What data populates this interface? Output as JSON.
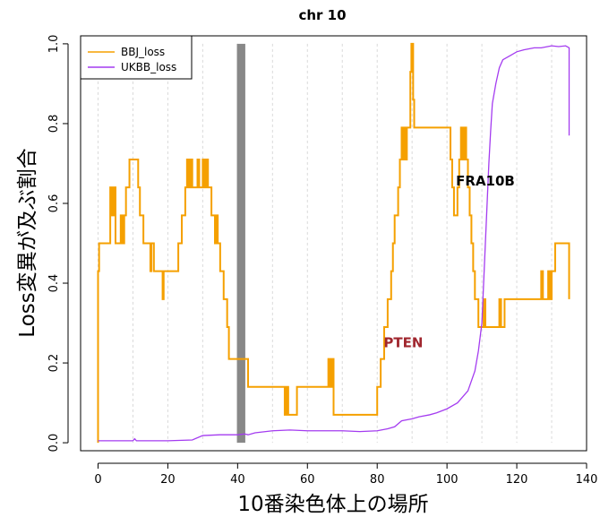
{
  "chart_data": {
    "type": "line",
    "title": "chr 10",
    "xlabel": "10番染色体上の場所",
    "ylabel": "Loss変異が及ぶ割合",
    "xlim": [
      -5,
      140
    ],
    "ylim": [
      -0.02,
      1.02
    ],
    "x_ticks": [
      0,
      20,
      40,
      60,
      80,
      100,
      120,
      140
    ],
    "y_ticks": [
      0.0,
      0.2,
      0.4,
      0.6,
      0.8,
      1.0
    ],
    "x_tick_labels": [
      "0",
      "20",
      "40",
      "60",
      "80",
      "100",
      "120",
      "140"
    ],
    "y_tick_labels": [
      "0.0",
      "0.2",
      "0.4",
      "0.6",
      "0.8",
      "1.0"
    ],
    "grid": "vertical dashed",
    "grid_x": [
      0,
      10,
      20,
      30,
      40,
      50,
      60,
      70,
      80,
      90,
      100,
      110,
      120,
      130
    ],
    "legend_position": "top-left",
    "centromere": {
      "x_start": 39.8,
      "x_end": 42.2,
      "y_start": 0.0,
      "y_end": 1.0,
      "color": "#888888"
    },
    "annotations": [
      {
        "text": "PTEN",
        "x": 87.5,
        "y": 0.24,
        "color": "#a0262e"
      },
      {
        "text": "FRA10B",
        "x": 111,
        "y": 0.645,
        "color": "#000000"
      }
    ],
    "series": [
      {
        "name": "BBJ_loss",
        "color": "#f5a000",
        "points": [
          [
            0,
            0.0
          ],
          [
            0,
            0.43
          ],
          [
            0.3,
            0.43
          ],
          [
            0.3,
            0.5
          ],
          [
            3.5,
            0.5
          ],
          [
            3.5,
            0.64
          ],
          [
            4,
            0.64
          ],
          [
            4,
            0.57
          ],
          [
            4.5,
            0.57
          ],
          [
            4.5,
            0.64
          ],
          [
            5,
            0.64
          ],
          [
            5,
            0.5
          ],
          [
            6.5,
            0.5
          ],
          [
            6.5,
            0.57
          ],
          [
            7,
            0.57
          ],
          [
            7,
            0.5
          ],
          [
            7.5,
            0.5
          ],
          [
            7.5,
            0.57
          ],
          [
            8,
            0.57
          ],
          [
            8,
            0.64
          ],
          [
            9,
            0.64
          ],
          [
            9,
            0.71
          ],
          [
            11.5,
            0.71
          ],
          [
            11.5,
            0.64
          ],
          [
            12,
            0.64
          ],
          [
            12,
            0.57
          ],
          [
            13,
            0.57
          ],
          [
            13,
            0.5
          ],
          [
            15,
            0.5
          ],
          [
            15,
            0.43
          ],
          [
            15.3,
            0.43
          ],
          [
            15.3,
            0.5
          ],
          [
            16,
            0.5
          ],
          [
            16,
            0.43
          ],
          [
            18.5,
            0.43
          ],
          [
            18.5,
            0.36
          ],
          [
            18.8,
            0.36
          ],
          [
            18.8,
            0.43
          ],
          [
            23,
            0.43
          ],
          [
            23,
            0.5
          ],
          [
            24,
            0.5
          ],
          [
            24,
            0.57
          ],
          [
            25,
            0.57
          ],
          [
            25,
            0.64
          ],
          [
            25.5,
            0.64
          ],
          [
            25.5,
            0.71
          ],
          [
            26,
            0.71
          ],
          [
            26,
            0.64
          ],
          [
            26.5,
            0.64
          ],
          [
            26.5,
            0.71
          ],
          [
            27,
            0.71
          ],
          [
            27,
            0.64
          ],
          [
            28.5,
            0.64
          ],
          [
            28.5,
            0.71
          ],
          [
            29,
            0.71
          ],
          [
            29,
            0.64
          ],
          [
            30,
            0.64
          ],
          [
            30,
            0.71
          ],
          [
            30.5,
            0.71
          ],
          [
            30.5,
            0.64
          ],
          [
            31,
            0.64
          ],
          [
            31,
            0.71
          ],
          [
            31.5,
            0.71
          ],
          [
            31.5,
            0.64
          ],
          [
            32.5,
            0.64
          ],
          [
            32.5,
            0.57
          ],
          [
            33.5,
            0.57
          ],
          [
            33.5,
            0.5
          ],
          [
            34,
            0.5
          ],
          [
            34,
            0.57
          ],
          [
            34.3,
            0.57
          ],
          [
            34.3,
            0.5
          ],
          [
            35,
            0.5
          ],
          [
            35,
            0.43
          ],
          [
            36,
            0.43
          ],
          [
            36,
            0.36
          ],
          [
            37,
            0.36
          ],
          [
            37,
            0.29
          ],
          [
            37.5,
            0.29
          ],
          [
            37.5,
            0.21
          ],
          [
            43,
            0.21
          ],
          [
            43,
            0.14
          ],
          [
            53.5,
            0.14
          ],
          [
            53.5,
            0.07
          ],
          [
            54,
            0.07
          ],
          [
            54,
            0.14
          ],
          [
            54.5,
            0.14
          ],
          [
            54.5,
            0.07
          ],
          [
            57,
            0.07
          ],
          [
            57,
            0.14
          ],
          [
            66,
            0.14
          ],
          [
            66,
            0.21
          ],
          [
            66.5,
            0.21
          ],
          [
            66.5,
            0.14
          ],
          [
            67,
            0.14
          ],
          [
            67,
            0.21
          ],
          [
            67.5,
            0.21
          ],
          [
            67.5,
            0.07
          ],
          [
            80,
            0.07
          ],
          [
            80,
            0.14
          ],
          [
            81,
            0.14
          ],
          [
            81,
            0.21
          ],
          [
            82,
            0.21
          ],
          [
            82,
            0.29
          ],
          [
            83,
            0.29
          ],
          [
            83,
            0.36
          ],
          [
            84,
            0.36
          ],
          [
            84,
            0.43
          ],
          [
            84.5,
            0.43
          ],
          [
            84.5,
            0.5
          ],
          [
            85,
            0.5
          ],
          [
            85,
            0.57
          ],
          [
            86,
            0.57
          ],
          [
            86,
            0.64
          ],
          [
            86.5,
            0.64
          ],
          [
            86.5,
            0.71
          ],
          [
            87,
            0.71
          ],
          [
            87,
            0.79
          ],
          [
            87.3,
            0.79
          ],
          [
            87.3,
            0.71
          ],
          [
            87.6,
            0.71
          ],
          [
            87.6,
            0.79
          ],
          [
            88,
            0.79
          ],
          [
            88,
            0.71
          ],
          [
            88.5,
            0.71
          ],
          [
            88.5,
            0.79
          ],
          [
            89.5,
            0.79
          ],
          [
            89.5,
            0.93
          ],
          [
            89.8,
            0.93
          ],
          [
            89.8,
            1.0
          ],
          [
            90.3,
            1.0
          ],
          [
            90.3,
            0.86
          ],
          [
            90.6,
            0.86
          ],
          [
            90.6,
            0.79
          ],
          [
            101,
            0.79
          ],
          [
            101,
            0.71
          ],
          [
            101.5,
            0.71
          ],
          [
            101.5,
            0.64
          ],
          [
            102,
            0.64
          ],
          [
            102,
            0.57
          ],
          [
            103,
            0.57
          ],
          [
            103,
            0.64
          ],
          [
            103.5,
            0.64
          ],
          [
            103.5,
            0.71
          ],
          [
            104,
            0.71
          ],
          [
            104,
            0.79
          ],
          [
            104.5,
            0.79
          ],
          [
            104.5,
            0.71
          ],
          [
            105,
            0.71
          ],
          [
            105,
            0.79
          ],
          [
            105.5,
            0.79
          ],
          [
            105.5,
            0.71
          ],
          [
            106,
            0.71
          ],
          [
            106,
            0.64
          ],
          [
            106.5,
            0.64
          ],
          [
            106.5,
            0.57
          ],
          [
            107,
            0.57
          ],
          [
            107,
            0.5
          ],
          [
            107.5,
            0.5
          ],
          [
            107.5,
            0.43
          ],
          [
            108,
            0.43
          ],
          [
            108,
            0.36
          ],
          [
            109,
            0.36
          ],
          [
            109,
            0.29
          ],
          [
            110.5,
            0.29
          ],
          [
            110.5,
            0.36
          ],
          [
            111,
            0.36
          ],
          [
            111,
            0.29
          ],
          [
            115,
            0.29
          ],
          [
            115,
            0.36
          ],
          [
            115.5,
            0.36
          ],
          [
            115.5,
            0.29
          ],
          [
            116.5,
            0.29
          ],
          [
            116.5,
            0.36
          ],
          [
            127,
            0.36
          ],
          [
            127,
            0.43
          ],
          [
            127.5,
            0.43
          ],
          [
            127.5,
            0.36
          ],
          [
            129,
            0.36
          ],
          [
            129,
            0.43
          ],
          [
            129.5,
            0.43
          ],
          [
            129.5,
            0.36
          ],
          [
            130,
            0.36
          ],
          [
            130,
            0.43
          ],
          [
            131,
            0.43
          ],
          [
            131,
            0.5
          ],
          [
            135,
            0.5
          ],
          [
            135,
            0.36
          ]
        ]
      },
      {
        "name": "UKBB_loss",
        "color": "#a43cf0",
        "points": [
          [
            0,
            0.005
          ],
          [
            10,
            0.005
          ],
          [
            10.5,
            0.01
          ],
          [
            11,
            0.005
          ],
          [
            20,
            0.005
          ],
          [
            27,
            0.007
          ],
          [
            30,
            0.018
          ],
          [
            35,
            0.02
          ],
          [
            40,
            0.02
          ],
          [
            42,
            0.022
          ],
          [
            43,
            0.02
          ],
          [
            45,
            0.025
          ],
          [
            50,
            0.03
          ],
          [
            55,
            0.032
          ],
          [
            60,
            0.03
          ],
          [
            65,
            0.03
          ],
          [
            70,
            0.03
          ],
          [
            75,
            0.028
          ],
          [
            80,
            0.03
          ],
          [
            83,
            0.035
          ],
          [
            85,
            0.04
          ],
          [
            87,
            0.055
          ],
          [
            90,
            0.06
          ],
          [
            92,
            0.065
          ],
          [
            95,
            0.07
          ],
          [
            97,
            0.075
          ],
          [
            100,
            0.085
          ],
          [
            103,
            0.1
          ],
          [
            106,
            0.13
          ],
          [
            108,
            0.18
          ],
          [
            109,
            0.23
          ],
          [
            110,
            0.3
          ],
          [
            110.5,
            0.4
          ],
          [
            111,
            0.5
          ],
          [
            111.5,
            0.6
          ],
          [
            112,
            0.7
          ],
          [
            112.5,
            0.78
          ],
          [
            113,
            0.85
          ],
          [
            114,
            0.9
          ],
          [
            115,
            0.94
          ],
          [
            116,
            0.96
          ],
          [
            118,
            0.97
          ],
          [
            120,
            0.98
          ],
          [
            122,
            0.985
          ],
          [
            125,
            0.99
          ],
          [
            127,
            0.99
          ],
          [
            130,
            0.995
          ],
          [
            132,
            0.993
          ],
          [
            134,
            0.995
          ],
          [
            135,
            0.99
          ],
          [
            135,
            0.77
          ]
        ]
      }
    ]
  }
}
